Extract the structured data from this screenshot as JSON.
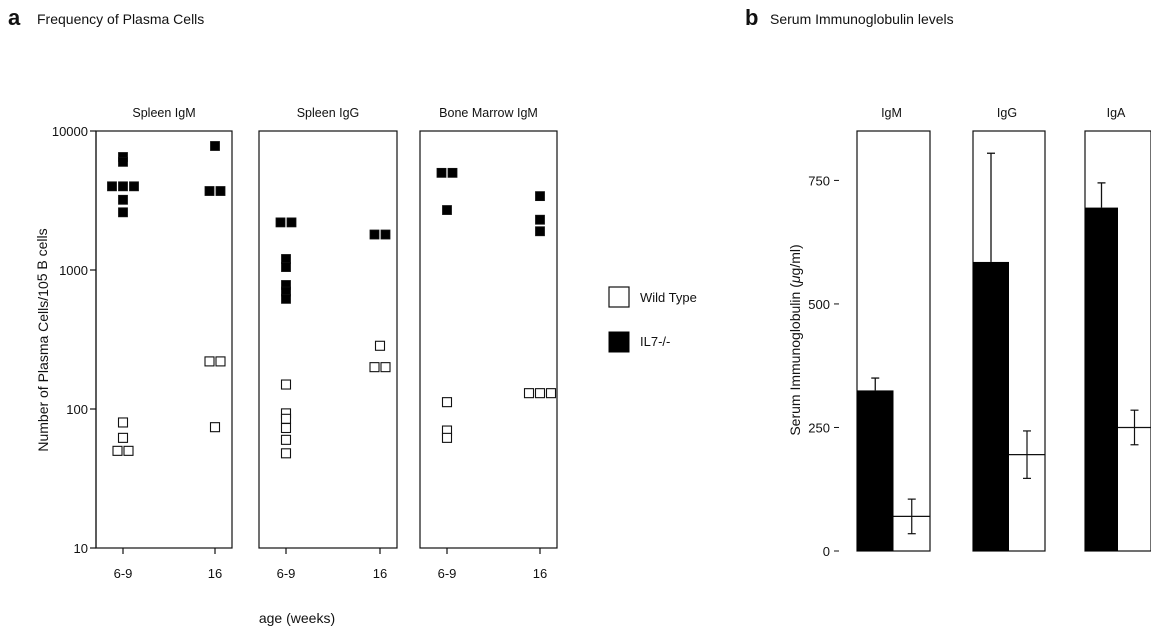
{
  "panel_a": {
    "letter": "a",
    "title": "Frequency of Plasma Cells",
    "ylabel": "Number of Plasma Cells/10",
    "ylabel_sup": "5",
    "ylabel_tail": " B cells",
    "xlabel": "age (weeks)"
  },
  "panel_b": {
    "letter": "b",
    "title": "Serum Immunoglobulin levels",
    "ylabel_pre": "Serum Immunoglobulin (",
    "ylabel_mu": "μ",
    "ylabel_post": "g/ml)"
  },
  "legend": {
    "wild_type": "Wild Type",
    "il7": "IL7-/-"
  },
  "colors": {
    "il7": "#000000",
    "wild_type": "#ffffff",
    "axis": "#111111"
  },
  "chart_data": [
    {
      "type": "scatter",
      "title": "Frequency of Plasma Cells",
      "xlabel": "age (weeks)",
      "ylabel": "Number of Plasma Cells/10^5 B cells",
      "yscale": "log",
      "ylim": [
        10,
        10000
      ],
      "yticks": [
        "10",
        "100",
        "1000",
        "10000"
      ],
      "categories": [
        "6-9",
        "16"
      ],
      "grid": false,
      "legend": "right",
      "panels": [
        {
          "name": "Spleen IgM",
          "series": [
            {
              "name": "IL7-/-",
              "points": [
                {
                  "x": "6-9",
                  "y": 6500
                },
                {
                  "x": "6-9",
                  "y": 6000
                },
                {
                  "x": "6-9",
                  "y": 4000
                },
                {
                  "x": "6-9",
                  "y": 4000
                },
                {
                  "x": "6-9",
                  "y": 4000
                },
                {
                  "x": "6-9",
                  "y": 3200
                },
                {
                  "x": "6-9",
                  "y": 2600
                },
                {
                  "x": "16",
                  "y": 7800
                },
                {
                  "x": "16",
                  "y": 3700
                },
                {
                  "x": "16",
                  "y": 3700
                }
              ]
            },
            {
              "name": "Wild Type",
              "points": [
                {
                  "x": "6-9",
                  "y": 80
                },
                {
                  "x": "6-9",
                  "y": 62
                },
                {
                  "x": "6-9",
                  "y": 50
                },
                {
                  "x": "6-9",
                  "y": 50
                },
                {
                  "x": "16",
                  "y": 220
                },
                {
                  "x": "16",
                  "y": 220
                },
                {
                  "x": "16",
                  "y": 74
                }
              ]
            }
          ]
        },
        {
          "name": "Spleen IgG",
          "series": [
            {
              "name": "IL7-/-",
              "points": [
                {
                  "x": "6-9",
                  "y": 2200
                },
                {
                  "x": "6-9",
                  "y": 2200
                },
                {
                  "x": "6-9",
                  "y": 1200
                },
                {
                  "x": "6-9",
                  "y": 1050
                },
                {
                  "x": "6-9",
                  "y": 780
                },
                {
                  "x": "6-9",
                  "y": 700
                },
                {
                  "x": "6-9",
                  "y": 620
                },
                {
                  "x": "16",
                  "y": 1800
                },
                {
                  "x": "16",
                  "y": 1800
                }
              ]
            },
            {
              "name": "Wild Type",
              "points": [
                {
                  "x": "6-9",
                  "y": 150
                },
                {
                  "x": "6-9",
                  "y": 93
                },
                {
                  "x": "6-9",
                  "y": 85
                },
                {
                  "x": "6-9",
                  "y": 73
                },
                {
                  "x": "6-9",
                  "y": 60
                },
                {
                  "x": "6-9",
                  "y": 48
                },
                {
                  "x": "16",
                  "y": 285
                },
                {
                  "x": "16",
                  "y": 200
                },
                {
                  "x": "16",
                  "y": 200
                }
              ]
            }
          ]
        },
        {
          "name": "Bone Marrow IgM",
          "series": [
            {
              "name": "IL7-/-",
              "points": [
                {
                  "x": "6-9",
                  "y": 5000
                },
                {
                  "x": "6-9",
                  "y": 5000
                },
                {
                  "x": "6-9",
                  "y": 2700
                },
                {
                  "x": "16",
                  "y": 3400
                },
                {
                  "x": "16",
                  "y": 2300
                },
                {
                  "x": "16",
                  "y": 1900
                }
              ]
            },
            {
              "name": "Wild Type",
              "points": [
                {
                  "x": "6-9",
                  "y": 112
                },
                {
                  "x": "6-9",
                  "y": 70
                },
                {
                  "x": "6-9",
                  "y": 62
                },
                {
                  "x": "16",
                  "y": 130
                },
                {
                  "x": "16",
                  "y": 130
                },
                {
                  "x": "16",
                  "y": 130
                }
              ]
            }
          ]
        }
      ]
    },
    {
      "type": "bar",
      "title": "Serum Immunoglobulin levels",
      "ylabel": "Serum Immunoglobulin (μg/ml)",
      "ylim": [
        0,
        850
      ],
      "yticks": [
        "0",
        "250",
        "500",
        "750"
      ],
      "grid": false,
      "panels": [
        {
          "name": "IgM",
          "series": [
            {
              "name": "IL7-/-",
              "value": 325,
              "error": 25
            },
            {
              "name": "Wild Type",
              "value": 70,
              "error": 35
            }
          ]
        },
        {
          "name": "IgG",
          "series": [
            {
              "name": "IL7-/-",
              "value": 585,
              "error": 220
            },
            {
              "name": "Wild Type",
              "value": 195,
              "error": 48
            }
          ]
        },
        {
          "name": "IgA",
          "series": [
            {
              "name": "IL7-/-",
              "value": 695,
              "error": 50
            },
            {
              "name": "Wild Type",
              "value": 250,
              "error": 35
            }
          ]
        }
      ]
    }
  ]
}
